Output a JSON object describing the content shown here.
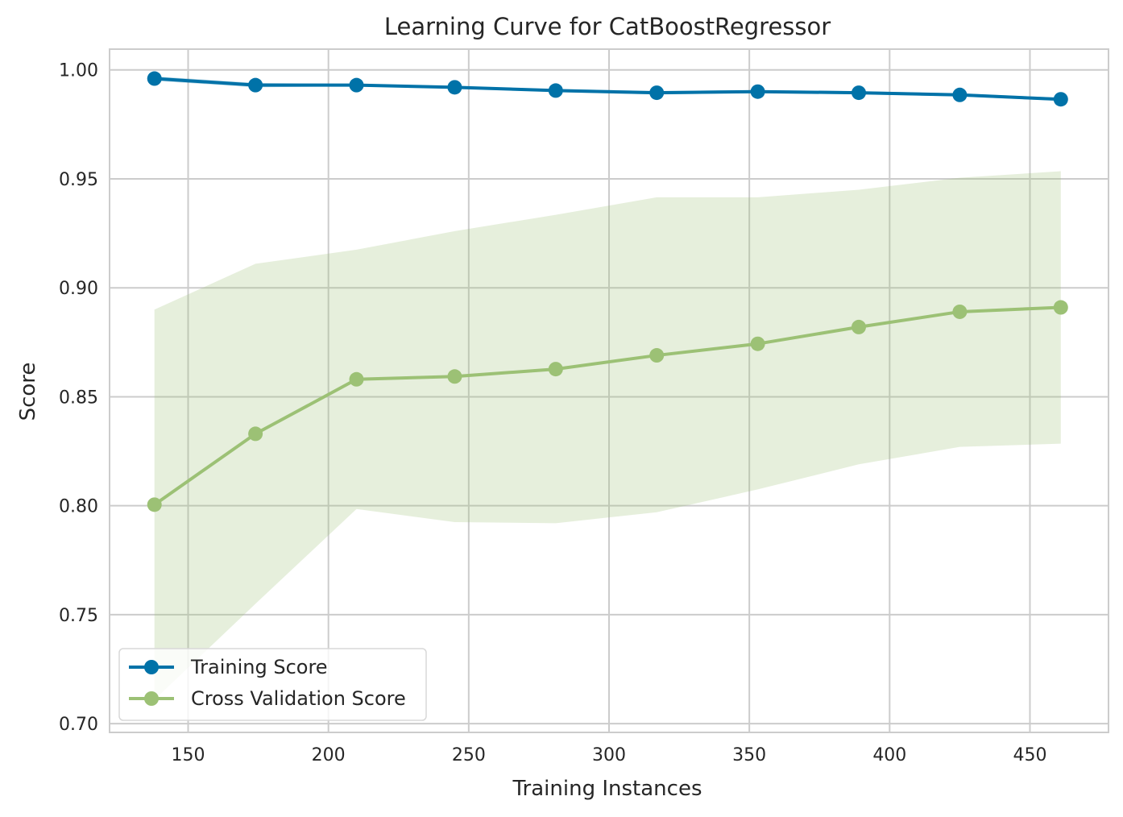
{
  "chart_data": {
    "type": "line",
    "title": "Learning Curve for CatBoostRegressor",
    "xlabel": "Training Instances",
    "ylabel": "Score",
    "xlim": [
      122,
      478
    ],
    "ylim": [
      0.696,
      1.0095
    ],
    "xticks": [
      150,
      200,
      250,
      300,
      350,
      400,
      450
    ],
    "yticks": [
      0.7,
      0.75,
      0.8,
      0.85,
      0.9,
      0.95,
      1.0
    ],
    "ytick_labels": [
      "0.70",
      "0.75",
      "0.80",
      "0.85",
      "0.90",
      "0.95",
      "1.00"
    ],
    "grid": true,
    "legend_position": "lower-left",
    "x": [
      138,
      174,
      210,
      245,
      281,
      317,
      353,
      389,
      425,
      461
    ],
    "series": [
      {
        "name": "Training Score",
        "color": "#0072a8",
        "values": [
          0.996,
          0.993,
          0.993,
          0.992,
          0.9905,
          0.9895,
          0.99,
          0.9895,
          0.9885,
          0.9865
        ],
        "band_upper": [
          0.997,
          0.994,
          0.9935,
          0.9925,
          0.9912,
          0.9903,
          0.9907,
          0.9902,
          0.9892,
          0.9872
        ],
        "band_lower": [
          0.995,
          0.992,
          0.9925,
          0.9915,
          0.9898,
          0.9887,
          0.9893,
          0.9888,
          0.9878,
          0.9858
        ]
      },
      {
        "name": "Cross Validation Score",
        "color": "#9cc175",
        "values": [
          0.8005,
          0.833,
          0.858,
          0.8593,
          0.8627,
          0.869,
          0.8743,
          0.882,
          0.889,
          0.891
        ],
        "band_upper": [
          0.89,
          0.911,
          0.9175,
          0.926,
          0.9335,
          0.9415,
          0.9415,
          0.945,
          0.9505,
          0.9535
        ],
        "band_lower": [
          0.711,
          0.755,
          0.7985,
          0.7925,
          0.792,
          0.797,
          0.8075,
          0.819,
          0.827,
          0.8285
        ]
      }
    ]
  }
}
